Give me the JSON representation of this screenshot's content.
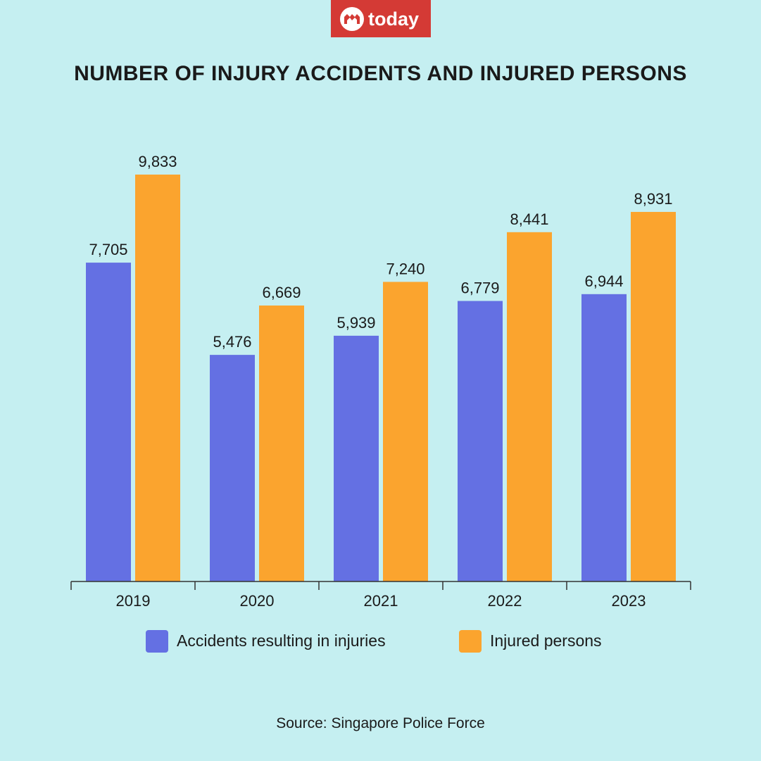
{
  "brand": {
    "logo_text": "today",
    "logo_color": "#d43a35"
  },
  "chart_data": {
    "type": "bar",
    "title": "NUMBER OF INJURY ACCIDENTS AND INJURED PERSONS",
    "categories": [
      "2019",
      "2020",
      "2021",
      "2022",
      "2023"
    ],
    "series": [
      {
        "name": "Accidents resulting in injuries",
        "color": "#6470e3",
        "values": [
          7705,
          5476,
          5939,
          6779,
          6944
        ]
      },
      {
        "name": "Injured persons",
        "color": "#fba42e",
        "values": [
          9833,
          6669,
          7240,
          8441,
          8931
        ]
      }
    ],
    "ylim": [
      0,
      9833
    ],
    "grid": false,
    "legend_position": "bottom",
    "source": "Source: Singapore Police Force"
  }
}
